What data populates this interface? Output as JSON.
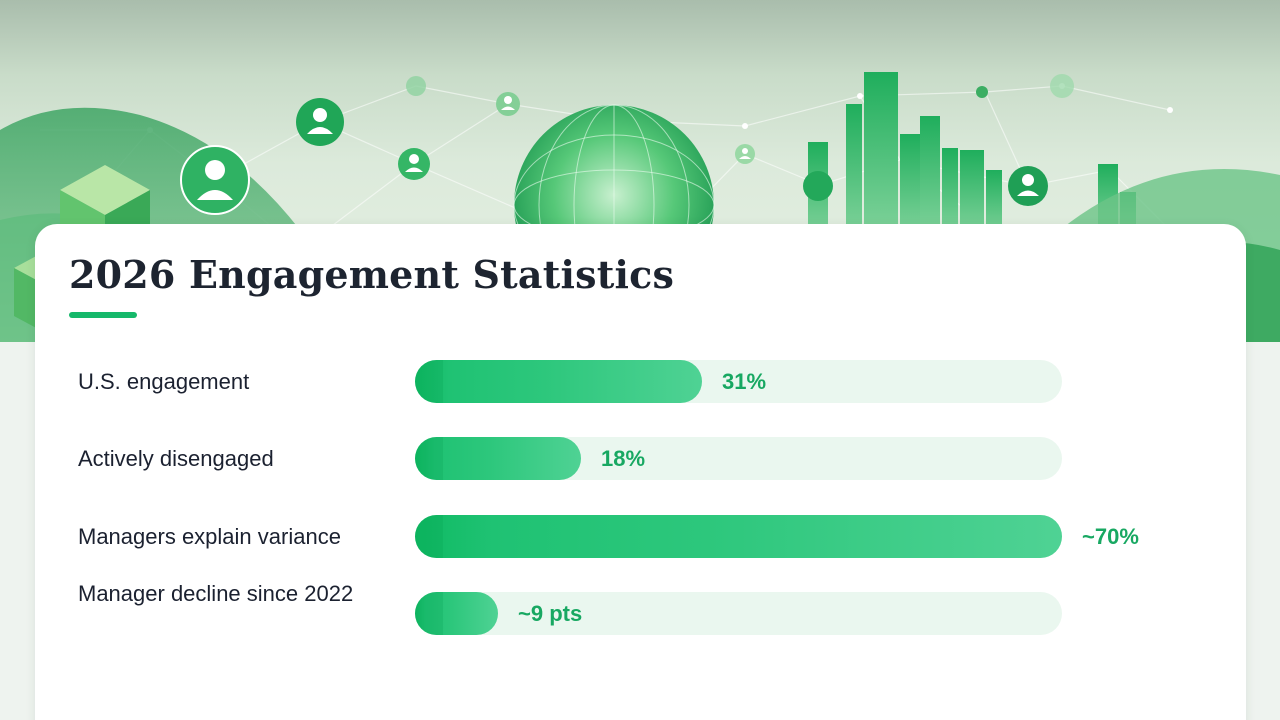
{
  "title": "2026 Engagement Statistics",
  "colors": {
    "accent": "#15b86a",
    "bar_fill": "#2dc77c",
    "bar_track": "#eaf7ef",
    "value_text": "#18a862",
    "title_text": "#1d2430"
  },
  "banner": {
    "icons": [
      "user-icon",
      "globe-icon",
      "city-buildings-icon",
      "cube-icon",
      "network-lines-icon"
    ]
  },
  "chart_data": {
    "type": "bar",
    "orientation": "horizontal",
    "xlim": [
      0,
      70
    ],
    "categories": [
      "U.S. engagement",
      "Actively disengaged",
      "Managers explain variance",
      "Manager decline since 2022"
    ],
    "values": [
      31,
      18,
      70,
      9
    ],
    "value_labels": [
      "31%",
      "18%",
      "~70%",
      "~9 pts"
    ],
    "grid": false,
    "legend": "none"
  }
}
